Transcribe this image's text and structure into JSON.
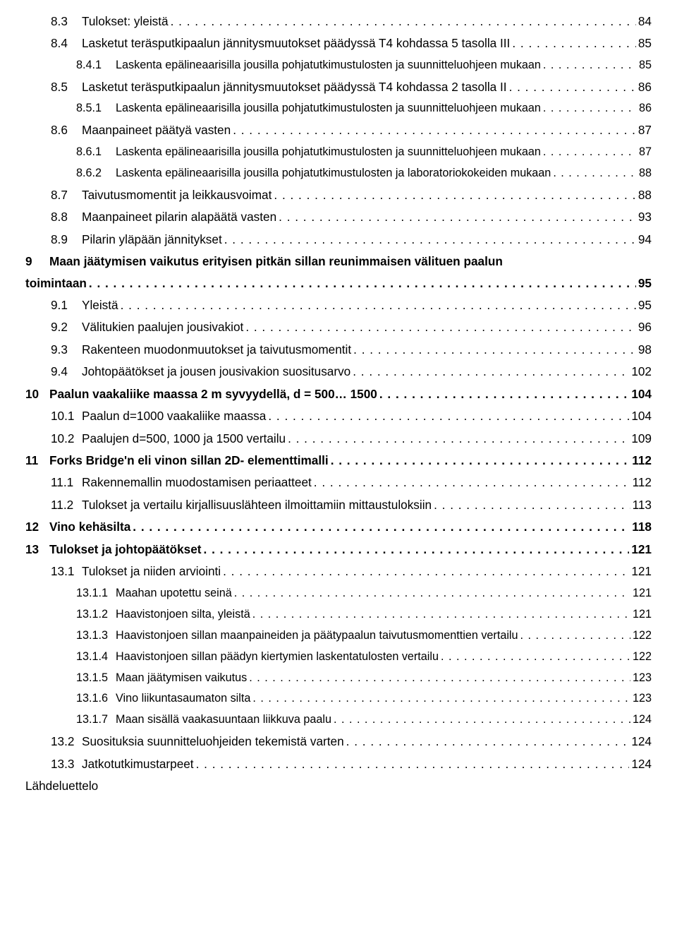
{
  "entries": [
    {
      "lvl": 2,
      "num": "8.3",
      "title": "Tulokset: yleistä",
      "page": "84"
    },
    {
      "lvl": 2,
      "num": "8.4",
      "title": "Lasketut teräsputkipaalun jännitysmuutokset päädyssä T4 kohdassa 5 tasolla III",
      "page": "85"
    },
    {
      "lvl": 3,
      "num": "8.4.1",
      "title": "Laskenta epälineaarisilla jousilla pohjatutkimustulosten ja suunnitteluohjeen mukaan",
      "page": "85"
    },
    {
      "lvl": 2,
      "num": "8.5",
      "title": "Lasketut teräsputkipaalun jännitysmuutokset päädyssä T4 kohdassa 2 tasolla II",
      "page": "86"
    },
    {
      "lvl": 3,
      "num": "8.5.1",
      "title": "Laskenta epälineaarisilla jousilla pohjatutkimustulosten ja suunnitteluohjeen mukaan",
      "page": "86"
    },
    {
      "lvl": 2,
      "num": "8.6",
      "title": "Maanpaineet päätyä vasten",
      "page": "87"
    },
    {
      "lvl": 3,
      "num": "8.6.1",
      "title": "Laskenta epälineaarisilla jousilla pohjatutkimustulosten ja suunnitteluohjeen mukaan",
      "page": "87"
    },
    {
      "lvl": 3,
      "num": "8.6.2",
      "title": "Laskenta epälineaarisilla jousilla pohjatutkimustulosten ja laboratoriokokeiden mukaan",
      "page": "88"
    },
    {
      "lvl": 2,
      "num": "8.7",
      "title": "Taivutusmomentit ja leikkausvoimat",
      "page": "88"
    },
    {
      "lvl": 2,
      "num": "8.8",
      "title": "Maanpaineet pilarin alapäätä vasten",
      "page": "93"
    },
    {
      "lvl": 2,
      "num": "8.9",
      "title": "Pilarin yläpään jännitykset",
      "page": "94"
    }
  ],
  "wrap9": {
    "num": "9",
    "line1": "Maan jäätymisen vaikutus erityisen pitkän sillan reunimmaisen välituen paalun",
    "line2": "toimintaan",
    "page": "95"
  },
  "entries2": [
    {
      "lvl": 2,
      "num": "9.1",
      "title": "Yleistä",
      "page": "95"
    },
    {
      "lvl": 2,
      "num": "9.2",
      "title": "Välitukien paalujen jousivakiot",
      "page": "96"
    },
    {
      "lvl": 2,
      "num": "9.3",
      "title": "Rakenteen muodonmuutokset ja taivutusmomentit",
      "page": "98"
    },
    {
      "lvl": 2,
      "num": "9.4",
      "title": "Johtopäätökset ja jousen jousivakion suositusarvo",
      "page": "102"
    },
    {
      "lvl": 1,
      "num": "10",
      "title": "Paalun vaakaliike maassa 2 m syvyydellä, d = 500… 1500",
      "page": "104"
    },
    {
      "lvl": 2,
      "num": "10.1",
      "title": "Paalun d=1000 vaakaliike maassa",
      "page": "104"
    },
    {
      "lvl": 2,
      "num": "10.2",
      "title": "Paalujen d=500, 1000 ja 1500 vertailu",
      "page": "109"
    },
    {
      "lvl": 1,
      "num": "11",
      "title": "Forks Bridge'n eli vinon sillan 2D- elementtimalli",
      "page": "112"
    },
    {
      "lvl": 2,
      "num": "11.1",
      "title": "Rakennemallin muodostamisen periaatteet",
      "page": "112"
    },
    {
      "lvl": 2,
      "num": "11.2",
      "title": "Tulokset ja vertailu kirjallisuuslähteen ilmoittamiin mittaustuloksiin",
      "page": "113"
    },
    {
      "lvl": 1,
      "num": "12",
      "title": "Vino kehäsilta",
      "page": "118"
    },
    {
      "lvl": 1,
      "num": "13",
      "title": "Tulokset ja johtopäätökset",
      "page": "121"
    },
    {
      "lvl": 2,
      "num": "13.1",
      "title": "Tulokset ja niiden arviointi",
      "page": "121"
    },
    {
      "lvl": 3,
      "num": "13.1.1",
      "title": "Maahan upotettu seinä",
      "page": "121"
    },
    {
      "lvl": 3,
      "num": "13.1.2",
      "title": "Haavistonjoen silta, yleistä",
      "page": "121"
    },
    {
      "lvl": 3,
      "num": "13.1.3",
      "title": "Haavistonjoen sillan maanpaineiden ja päätypaalun taivutusmomenttien vertailu",
      "page": "122"
    },
    {
      "lvl": 3,
      "num": "13.1.4",
      "title": "Haavistonjoen sillan päädyn kiertymien laskentatulosten vertailu",
      "page": "122"
    },
    {
      "lvl": 3,
      "num": "13.1.5",
      "title": "Maan jäätymisen vaikutus",
      "page": "123"
    },
    {
      "lvl": 3,
      "num": "13.1.6",
      "title": "Vino liikuntasaumaton silta",
      "page": "123"
    },
    {
      "lvl": 3,
      "num": "13.1.7",
      "title": "Maan sisällä vaakasuuntaan liikkuva paalu",
      "page": "124"
    },
    {
      "lvl": 2,
      "num": "13.2",
      "title": "Suosituksia suunnitteluohjeiden tekemistä varten",
      "page": "124"
    },
    {
      "lvl": 2,
      "num": "13.3",
      "title": "Jatkotutkimustarpeet",
      "page": "124"
    }
  ],
  "final_label": "Lähdeluettelo"
}
